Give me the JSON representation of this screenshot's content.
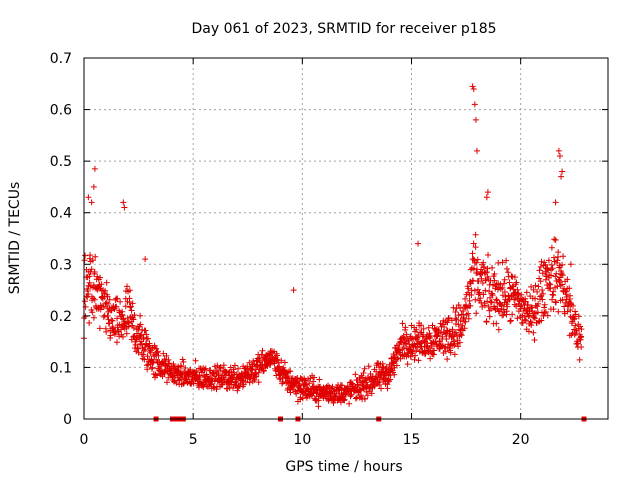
{
  "chart_data": {
    "type": "scatter",
    "title": "Day 061 of 2023, SRMTID for receiver p185",
    "xlabel": "GPS time / hours",
    "ylabel": "SRMTID / TECUs",
    "xlim": [
      0,
      24
    ],
    "ylim": [
      0,
      0.7
    ],
    "xticks": [
      0,
      5,
      10,
      15,
      20
    ],
    "xtick_labels": [
      "0",
      "5",
      "10",
      "15",
      "20"
    ],
    "yticks": [
      0,
      0.1,
      0.2,
      0.3,
      0.4,
      0.5,
      0.6,
      0.7
    ],
    "ytick_labels": [
      "0",
      "0.1",
      "0.2",
      "0.3",
      "0.4",
      "0.5",
      "0.6",
      "0.7"
    ],
    "grid": true,
    "series_color": "#e00000",
    "marker": "plus",
    "trend": [
      {
        "x": 0.0,
        "y": 0.26,
        "spread": 0.1
      },
      {
        "x": 0.3,
        "y": 0.28,
        "spread": 0.12
      },
      {
        "x": 0.8,
        "y": 0.22,
        "spread": 0.08
      },
      {
        "x": 1.5,
        "y": 0.18,
        "spread": 0.07
      },
      {
        "x": 2.0,
        "y": 0.2,
        "spread": 0.09
      },
      {
        "x": 2.6,
        "y": 0.15,
        "spread": 0.07
      },
      {
        "x": 3.3,
        "y": 0.11,
        "spread": 0.05
      },
      {
        "x": 4.0,
        "y": 0.09,
        "spread": 0.03
      },
      {
        "x": 5.0,
        "y": 0.08,
        "spread": 0.04
      },
      {
        "x": 6.0,
        "y": 0.08,
        "spread": 0.03
      },
      {
        "x": 7.0,
        "y": 0.08,
        "spread": 0.04
      },
      {
        "x": 8.0,
        "y": 0.1,
        "spread": 0.04
      },
      {
        "x": 8.6,
        "y": 0.12,
        "spread": 0.03
      },
      {
        "x": 9.2,
        "y": 0.08,
        "spread": 0.04
      },
      {
        "x": 10.0,
        "y": 0.06,
        "spread": 0.04
      },
      {
        "x": 11.0,
        "y": 0.05,
        "spread": 0.03
      },
      {
        "x": 12.0,
        "y": 0.05,
        "spread": 0.03
      },
      {
        "x": 13.0,
        "y": 0.07,
        "spread": 0.04
      },
      {
        "x": 14.0,
        "y": 0.09,
        "spread": 0.04
      },
      {
        "x": 14.6,
        "y": 0.15,
        "spread": 0.05
      },
      {
        "x": 15.5,
        "y": 0.15,
        "spread": 0.05
      },
      {
        "x": 16.5,
        "y": 0.16,
        "spread": 0.06
      },
      {
        "x": 17.3,
        "y": 0.18,
        "spread": 0.07
      },
      {
        "x": 17.9,
        "y": 0.28,
        "spread": 0.1
      },
      {
        "x": 18.5,
        "y": 0.24,
        "spread": 0.09
      },
      {
        "x": 19.5,
        "y": 0.24,
        "spread": 0.08
      },
      {
        "x": 20.5,
        "y": 0.2,
        "spread": 0.07
      },
      {
        "x": 21.2,
        "y": 0.27,
        "spread": 0.1
      },
      {
        "x": 21.8,
        "y": 0.28,
        "spread": 0.1
      },
      {
        "x": 22.3,
        "y": 0.2,
        "spread": 0.08
      },
      {
        "x": 22.8,
        "y": 0.15,
        "spread": 0.06
      }
    ],
    "peaks": [
      [
        0.2,
        0.43
      ],
      [
        0.35,
        0.42
      ],
      [
        0.45,
        0.45
      ],
      [
        0.5,
        0.485
      ],
      [
        1.8,
        0.42
      ],
      [
        1.85,
        0.41
      ],
      [
        2.8,
        0.31
      ],
      [
        9.6,
        0.25
      ],
      [
        15.3,
        0.34
      ],
      [
        17.8,
        0.645
      ],
      [
        17.85,
        0.64
      ],
      [
        17.9,
        0.61
      ],
      [
        17.95,
        0.58
      ],
      [
        18.0,
        0.52
      ],
      [
        18.5,
        0.44
      ],
      [
        18.45,
        0.43
      ],
      [
        21.75,
        0.52
      ],
      [
        21.8,
        0.51
      ],
      [
        21.9,
        0.48
      ],
      [
        21.85,
        0.47
      ],
      [
        21.6,
        0.42
      ],
      [
        22.3,
        0.3
      ]
    ],
    "zero_markers": [
      3.3,
      4.05,
      4.15,
      4.25,
      4.35,
      4.45,
      4.55,
      9.0,
      9.8,
      13.5,
      22.9
    ]
  }
}
